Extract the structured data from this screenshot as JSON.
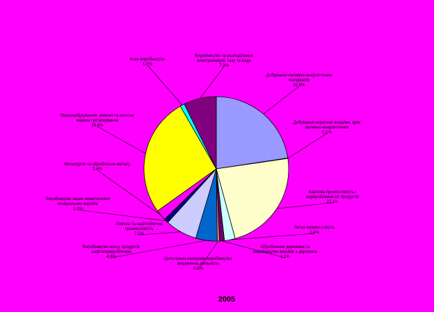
{
  "chart_data": {
    "type": "pie",
    "year_label": "2005",
    "slices": [
      {
        "name": "Добування паливно-енергетичних матеріалів",
        "value": 22.6,
        "value_label": "22,6%",
        "color": "#9999ff"
      },
      {
        "name": "Добування корисних копалин, крім паливно-енергетичних",
        "value": 0.1,
        "value_label": "0,1%",
        "color": "#993366"
      },
      {
        "name": "Харчова промисловість і перероблення с/г продуктів",
        "value": 23.1,
        "value_label": "23,1%",
        "color": "#ffffcc"
      },
      {
        "name": "Легка промисловість",
        "value": 2.4,
        "value_label": "2,4%",
        "color": "#ccffff"
      },
      {
        "name": "Оброблення деревини та виробництво виробів з деревини",
        "value": 1.1,
        "value_label": "1,1%",
        "color": "#660066"
      },
      {
        "name": "Целюлозно-паперове виробництво; видавнича діяльність",
        "value": 0.5,
        "value_label": "0,5%",
        "color": "#ff8080"
      },
      {
        "name": "Виробництво коксу, продуктів нафтоперероблення",
        "value": 4.8,
        "value_label": "4,8%",
        "color": "#0066cc"
      },
      {
        "name": "Хімічна та нафтохімічна промисловість",
        "value": 7.1,
        "value_label": "7,1%",
        "color": "#ccccff"
      },
      {
        "name": "Виробництво інших неметалевих мінеральних виробів",
        "value": 1.0,
        "value_label": "1,0%",
        "color": "#000080"
      },
      {
        "name": "Металургія та оброблення металу",
        "value": 2.4,
        "value_label": "2,4%",
        "color": "#ff00ff"
      },
      {
        "name": "Машинобудування, ремонт та монтаж машин і устаткування",
        "value": 26.6,
        "value_label": "26,6%",
        "color": "#ffff00"
      },
      {
        "name": "Інше виробництво",
        "value": 1.0,
        "value_label": "1,0%",
        "color": "#00ffff"
      },
      {
        "name": "Виробництво та розподілення електроенергії, газу та води",
        "value": 7.3,
        "value_label": "7,3%",
        "color": "#800080"
      }
    ]
  }
}
